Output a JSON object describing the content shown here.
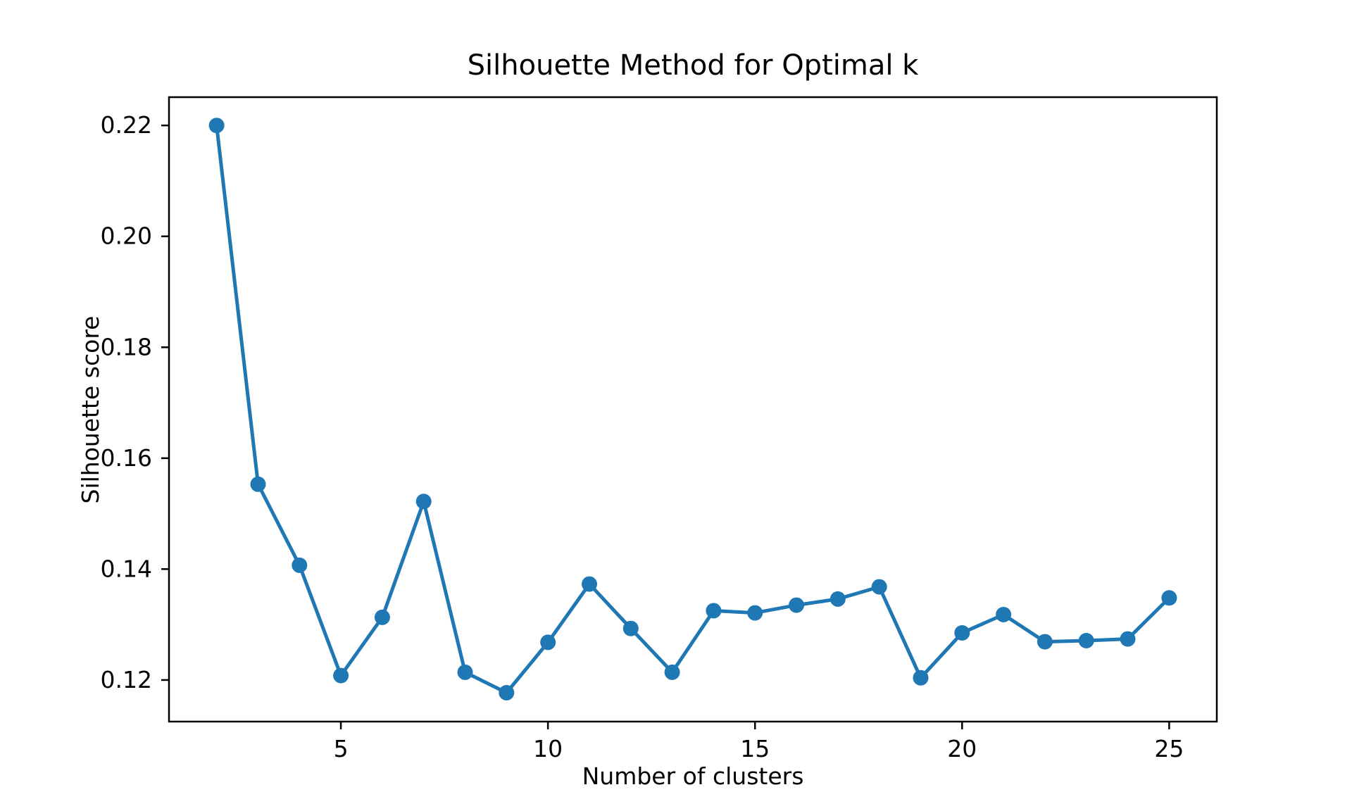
{
  "chart_data": {
    "type": "line",
    "title": "Silhouette Method for Optimal k",
    "xlabel": "Number of clusters",
    "ylabel": "Silhouette score",
    "x": [
      2,
      3,
      4,
      5,
      6,
      7,
      8,
      9,
      10,
      11,
      12,
      13,
      14,
      15,
      16,
      17,
      18,
      19,
      20,
      21,
      22,
      23,
      24,
      25
    ],
    "values": [
      0.22,
      0.1553,
      0.1407,
      0.1208,
      0.1313,
      0.1522,
      0.1214,
      0.1177,
      0.1268,
      0.1373,
      0.1293,
      0.1214,
      0.1325,
      0.1321,
      0.1335,
      0.1346,
      0.1368,
      0.1204,
      0.1285,
      0.1318,
      0.1269,
      0.1271,
      0.1274,
      0.1348
    ],
    "xticks": [
      5,
      10,
      15,
      20,
      25
    ],
    "xtick_labels": [
      "5",
      "10",
      "15",
      "20",
      "25"
    ],
    "yticks": [
      0.12,
      0.14,
      0.16,
      0.18,
      0.2,
      0.22
    ],
    "ytick_labels": [
      "0.12",
      "0.14",
      "0.16",
      "0.18",
      "0.20",
      "0.22"
    ],
    "xlim": [
      0.85,
      26.15
    ],
    "ylim": [
      0.1125,
      0.2251
    ],
    "grid": false,
    "legend": "none",
    "line_color": "#1f77b4",
    "marker": "circle",
    "marker_color": "#1f77b4",
    "spine_color": "#000000",
    "background_color": "#ffffff"
  }
}
